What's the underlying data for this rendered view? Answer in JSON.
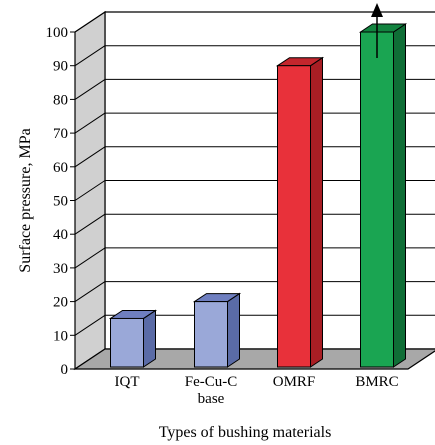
{
  "chart_data": {
    "type": "bar",
    "categories": [
      {
        "lines": [
          "IQT"
        ]
      },
      {
        "lines": [
          "Fe-Cu-C",
          "base"
        ]
      },
      {
        "lines": [
          "OMRF"
        ]
      },
      {
        "lines": [
          "BMRC"
        ]
      }
    ],
    "values": [
      15,
      20,
      90,
      100
    ],
    "bar_colors": [
      "#9aa8d8",
      "#9aa8d8",
      "#e8313a",
      "#1aa552"
    ],
    "bar_side_colors": [
      "#5a6ba6",
      "#5a6ba6",
      "#a81e24",
      "#0f6e36"
    ],
    "bar_top_colors": [
      "#6f7fc0",
      "#6f7fc0",
      "#c4262d",
      "#12833f"
    ],
    "last_bar_arrow": true,
    "xlabel": "Types of bushing materials",
    "ylabel": "Surface pressure, MPa",
    "ylim": [
      0,
      100
    ],
    "yticks": [
      0,
      10,
      20,
      30,
      40,
      50,
      60,
      70,
      80,
      90,
      100
    ],
    "grid": true,
    "style": "3d"
  }
}
